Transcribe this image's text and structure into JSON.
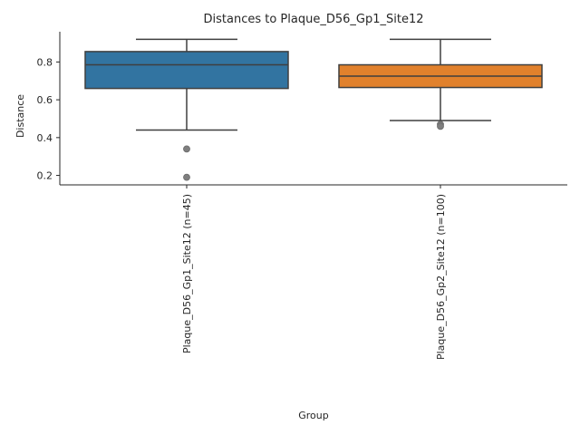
{
  "chart_data": {
    "type": "box",
    "title": "Distances to Plaque_D56_Gp1_Site12",
    "xlabel": "Group",
    "ylabel": "Distance",
    "ylim": [
      0.15,
      0.96
    ],
    "yticks": [
      0.2,
      0.4,
      0.6,
      0.8
    ],
    "ytick_labels": [
      "0.2",
      "0.4",
      "0.6",
      "0.8"
    ],
    "grid": false,
    "categories": [
      "Plaque_D56_Gp1_Site12 (n=45)",
      "Plaque_D56_Gp2_Site12 (n=100)"
    ],
    "boxes": [
      {
        "whisker_low": 0.44,
        "q1": 0.66,
        "median": 0.785,
        "q3": 0.855,
        "whisker_high": 0.92,
        "outliers": [
          0.34,
          0.19
        ],
        "color": "#3274a1"
      },
      {
        "whisker_low": 0.49,
        "q1": 0.665,
        "median": 0.725,
        "q3": 0.785,
        "whisker_high": 0.92,
        "outliers": [
          0.47,
          0.46
        ],
        "color": "#e1812c"
      }
    ]
  }
}
